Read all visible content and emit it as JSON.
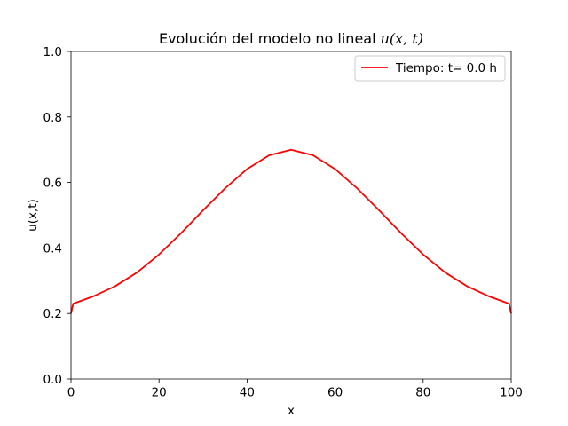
{
  "chart_data": {
    "type": "line",
    "title": {
      "text": "Evolución del modelo no lineal ",
      "math": "u(x, t)"
    },
    "xlabel": "x",
    "ylabel": "u(x,t)",
    "xlim": [
      0,
      100
    ],
    "ylim": [
      0,
      1
    ],
    "x_ticks": [
      0,
      20,
      40,
      60,
      80,
      100
    ],
    "x_tick_labels": [
      "0",
      "20",
      "40",
      "60",
      "80",
      "100"
    ],
    "y_ticks": [
      0,
      0.2,
      0.4,
      0.6,
      0.8,
      1.0
    ],
    "y_tick_labels": [
      "0.0",
      "0.2",
      "0.4",
      "0.6",
      "0.8",
      "1.0"
    ],
    "grid": false,
    "legend_position": "top-right",
    "series": [
      {
        "name": "Tiempo: t= 0.0 h",
        "color": "#ff0000",
        "x": [
          0,
          0.5,
          5,
          10,
          15,
          20,
          25,
          30,
          35,
          40,
          45,
          50,
          55,
          60,
          65,
          70,
          75,
          80,
          85,
          90,
          95,
          99.5,
          100
        ],
        "y": [
          0.2,
          0.23,
          0.252,
          0.283,
          0.325,
          0.38,
          0.445,
          0.515,
          0.582,
          0.641,
          0.683,
          0.7,
          0.683,
          0.641,
          0.582,
          0.515,
          0.445,
          0.38,
          0.325,
          0.283,
          0.252,
          0.23,
          0.2
        ]
      }
    ]
  }
}
